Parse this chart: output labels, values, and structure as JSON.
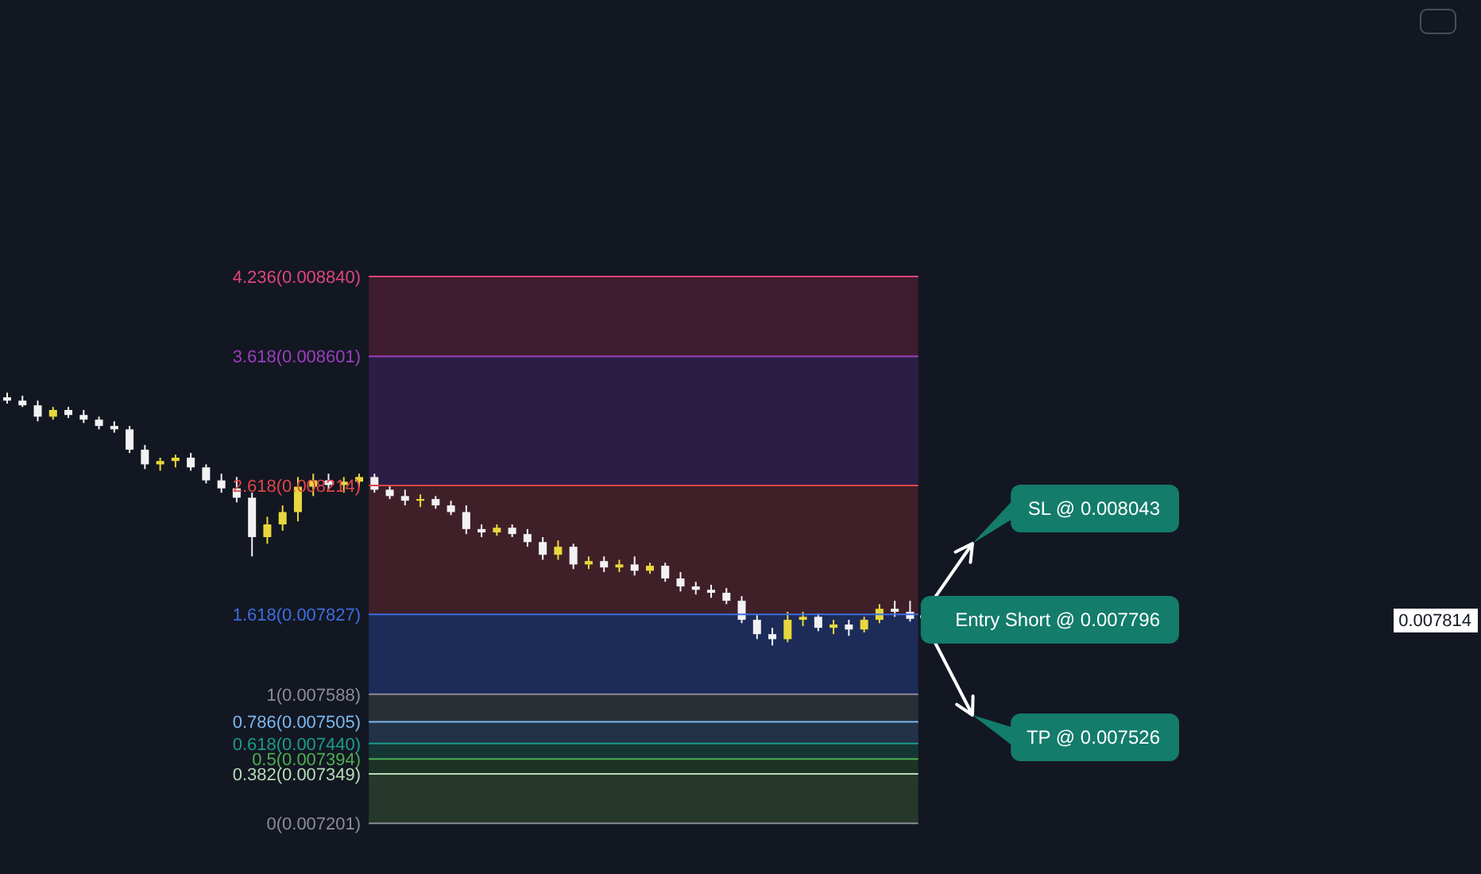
{
  "chart_data": {
    "type": "candlestick",
    "categories": [
      null,
      null,
      null,
      null,
      null,
      null,
      null,
      null,
      null,
      null,
      null,
      null,
      null,
      null,
      null,
      null,
      null,
      null,
      null,
      null,
      null,
      null,
      null,
      null,
      null,
      null,
      null,
      null,
      null,
      null,
      null,
      null,
      null,
      null,
      null,
      null,
      null,
      null,
      null,
      null,
      null,
      null,
      null,
      null,
      null,
      null,
      null,
      null,
      null,
      null,
      null,
      null,
      null,
      null,
      null,
      null,
      null,
      null,
      null,
      null
    ],
    "ohlc": [
      [
        0.008478,
        0.008492,
        0.008459,
        0.008468
      ],
      [
        0.008468,
        0.008483,
        0.008449,
        0.008454
      ],
      [
        0.008454,
        0.008468,
        0.008406,
        0.00842
      ],
      [
        0.00842,
        0.008449,
        0.008411,
        0.00844
      ],
      [
        0.00844,
        0.008449,
        0.008416,
        0.008425
      ],
      [
        0.008425,
        0.00844,
        0.008401,
        0.008411
      ],
      [
        0.008411,
        0.00842,
        0.008382,
        0.008392
      ],
      [
        0.008392,
        0.008406,
        0.008372,
        0.008382
      ],
      [
        0.008382,
        0.008392,
        0.008311,
        0.008321
      ],
      [
        0.008321,
        0.008335,
        0.008263,
        0.008277
      ],
      [
        0.008277,
        0.008297,
        0.008258,
        0.008287
      ],
      [
        0.008287,
        0.008306,
        0.008268,
        0.008297
      ],
      [
        0.008297,
        0.008311,
        0.008258,
        0.008268
      ],
      [
        0.008268,
        0.008277,
        0.00822,
        0.008229
      ],
      [
        0.008229,
        0.008249,
        0.008192,
        0.008205
      ],
      [
        0.008205,
        0.008239,
        0.008163,
        0.008177
      ],
      [
        0.008177,
        0.008192,
        0.008001,
        0.008059
      ],
      [
        0.008059,
        0.00812,
        0.008039,
        0.008097
      ],
      [
        0.008097,
        0.008154,
        0.008078,
        0.008134
      ],
      [
        0.008134,
        0.008239,
        0.008106,
        0.00821
      ],
      [
        0.00821,
        0.008249,
        0.008182,
        0.008229
      ],
      [
        0.008229,
        0.008249,
        0.008201,
        0.008215
      ],
      [
        0.008215,
        0.008239,
        0.008192,
        0.008225
      ],
      [
        0.008225,
        0.008249,
        0.00821,
        0.008239
      ],
      [
        0.008239,
        0.008249,
        0.008192,
        0.008201
      ],
      [
        0.008201,
        0.008215,
        0.008173,
        0.008182
      ],
      [
        0.008182,
        0.008201,
        0.008154,
        0.008168
      ],
      [
        0.008168,
        0.008187,
        0.008149,
        0.008173
      ],
      [
        0.008173,
        0.008182,
        0.008144,
        0.008154
      ],
      [
        0.008154,
        0.008168,
        0.008125,
        0.008134
      ],
      [
        0.008134,
        0.008154,
        0.008068,
        0.008083
      ],
      [
        0.008083,
        0.008097,
        0.008059,
        0.008073
      ],
      [
        0.008073,
        0.008097,
        0.008063,
        0.008087
      ],
      [
        0.008087,
        0.008097,
        0.008059,
        0.008068
      ],
      [
        0.008068,
        0.008083,
        0.00803,
        0.008044
      ],
      [
        0.008044,
        0.008059,
        0.007991,
        0.008006
      ],
      [
        0.008006,
        0.008049,
        0.007991,
        0.00803
      ],
      [
        0.00803,
        0.008039,
        0.007963,
        0.007977
      ],
      [
        0.007977,
        0.008001,
        0.007963,
        0.007987
      ],
      [
        0.007987,
        0.008001,
        0.007954,
        0.007968
      ],
      [
        0.007968,
        0.007991,
        0.007954,
        0.007977
      ],
      [
        0.007977,
        0.008001,
        0.007944,
        0.007958
      ],
      [
        0.007958,
        0.007982,
        0.007949,
        0.007973
      ],
      [
        0.007973,
        0.007982,
        0.007925,
        0.007935
      ],
      [
        0.007935,
        0.007954,
        0.007896,
        0.007911
      ],
      [
        0.007911,
        0.007925,
        0.007887,
        0.007901
      ],
      [
        0.007901,
        0.007916,
        0.007877,
        0.007892
      ],
      [
        0.007892,
        0.007906,
        0.007858,
        0.007868
      ],
      [
        0.007868,
        0.007882,
        0.007801,
        0.007811
      ],
      [
        0.007811,
        0.007825,
        0.007753,
        0.007768
      ],
      [
        0.007768,
        0.007787,
        0.007734,
        0.007753
      ],
      [
        0.007753,
        0.007835,
        0.007744,
        0.007811
      ],
      [
        0.007811,
        0.007835,
        0.007792,
        0.00782
      ],
      [
        0.00782,
        0.00783,
        0.007777,
        0.007787
      ],
      [
        0.007787,
        0.007811,
        0.007768,
        0.007797
      ],
      [
        0.007797,
        0.007811,
        0.007763,
        0.007782
      ],
      [
        0.007782,
        0.00782,
        0.007773,
        0.007811
      ],
      [
        0.007811,
        0.007858,
        0.007801,
        0.007844
      ],
      [
        0.007844,
        0.007868,
        0.00782,
        0.007835
      ],
      [
        0.007835,
        0.007868,
        0.007806,
        0.007814
      ]
    ],
    "colors": [
      "#f2f2f2",
      "#f2f2f2",
      "#f2f2f2",
      "#e8d83e",
      "#f2f2f2",
      "#f2f2f2",
      "#f2f2f2",
      "#f2f2f2",
      "#f2f2f2",
      "#f2f2f2",
      "#e8d83e",
      "#e8d83e",
      "#f2f2f2",
      "#f2f2f2",
      "#f2f2f2",
      "#f2f2f2",
      "#f2f2f2",
      "#e8d83e",
      "#e8d83e",
      "#e8d83e",
      "#e8d83e",
      "#f2f2f2",
      "#e8d83e",
      "#e8d83e",
      "#f2f2f2",
      "#f2f2f2",
      "#f2f2f2",
      "#e8d83e",
      "#f2f2f2",
      "#f2f2f2",
      "#f2f2f2",
      "#f2f2f2",
      "#e8d83e",
      "#f2f2f2",
      "#f2f2f2",
      "#f2f2f2",
      "#e8d83e",
      "#f2f2f2",
      "#e8d83e",
      "#f2f2f2",
      "#e8d83e",
      "#f2f2f2",
      "#e8d83e",
      "#f2f2f2",
      "#f2f2f2",
      "#f2f2f2",
      "#f2f2f2",
      "#f2f2f2",
      "#f2f2f2",
      "#f2f2f2",
      "#f2f2f2",
      "#e8d83e",
      "#e8d83e",
      "#f2f2f2",
      "#e8d83e",
      "#f2f2f2",
      "#e8d83e",
      "#e8d83e",
      "#f2f2f2",
      "#f2f2f2"
    ],
    "ylim": [
      0.007049,
      0.009669
    ],
    "tick_labels": false,
    "bands": [
      {
        "axis": "y",
        "from": 0.008601,
        "to": 0.00884,
        "color": "#3d1c2e"
      },
      {
        "axis": "y",
        "from": 0.008214,
        "to": 0.008601,
        "color": "#2c1d45"
      },
      {
        "axis": "y",
        "from": 0.007827,
        "to": 0.008214,
        "color": "#3f2029"
      },
      {
        "axis": "y",
        "from": 0.007588,
        "to": 0.007827,
        "color": "#1c2b58"
      },
      {
        "axis": "y",
        "from": 0.007505,
        "to": 0.007588,
        "color": "#2a2e35"
      },
      {
        "axis": "y",
        "from": 0.00744,
        "to": 0.007505,
        "color": "#213249"
      },
      {
        "axis": "y",
        "from": 0.007394,
        "to": 0.00744,
        "color": "#163634"
      },
      {
        "axis": "y",
        "from": 0.007349,
        "to": 0.007394,
        "color": "#1c3325"
      },
      {
        "axis": "y",
        "from": 0.007201,
        "to": 0.007349,
        "color": "#25382b"
      }
    ],
    "ref_lines": [
      {
        "axis": "y",
        "value": 0.00884,
        "label": "4.236(0.008840)",
        "color": "#e0457b"
      },
      {
        "axis": "y",
        "value": 0.008601,
        "label": "3.618(0.008601)",
        "color": "#9c3fbf"
      },
      {
        "axis": "y",
        "value": 0.008214,
        "label": "2.618(0.008214)",
        "color": "#e0454a"
      },
      {
        "axis": "y",
        "value": 0.007827,
        "label": "1.618(0.007827)",
        "color": "#3d6ee0"
      },
      {
        "axis": "y",
        "value": 0.007588,
        "label": "1(0.007588)",
        "color": "#8a8d96"
      },
      {
        "axis": "y",
        "value": 0.007505,
        "label": "0.786(0.007505)",
        "color": "#7bb8f0"
      },
      {
        "axis": "y",
        "value": 0.00744,
        "label": "0.618(0.007440)",
        "color": "#1a9c8c"
      },
      {
        "axis": "y",
        "value": 0.007394,
        "label": "0.5(0.007394)",
        "color": "#4caf50"
      },
      {
        "axis": "y",
        "value": 0.007349,
        "label": "0.382(0.007349)",
        "color": "#b5dcb6"
      },
      {
        "axis": "y",
        "value": 0.007201,
        "label": "0(0.007201)",
        "color": "#8a8d96"
      }
    ],
    "annotations": [
      "SL @ 0.008043",
      "Entry Short @ 0.007796",
      "TP @ 0.007526",
      "0.007814"
    ]
  }
}
